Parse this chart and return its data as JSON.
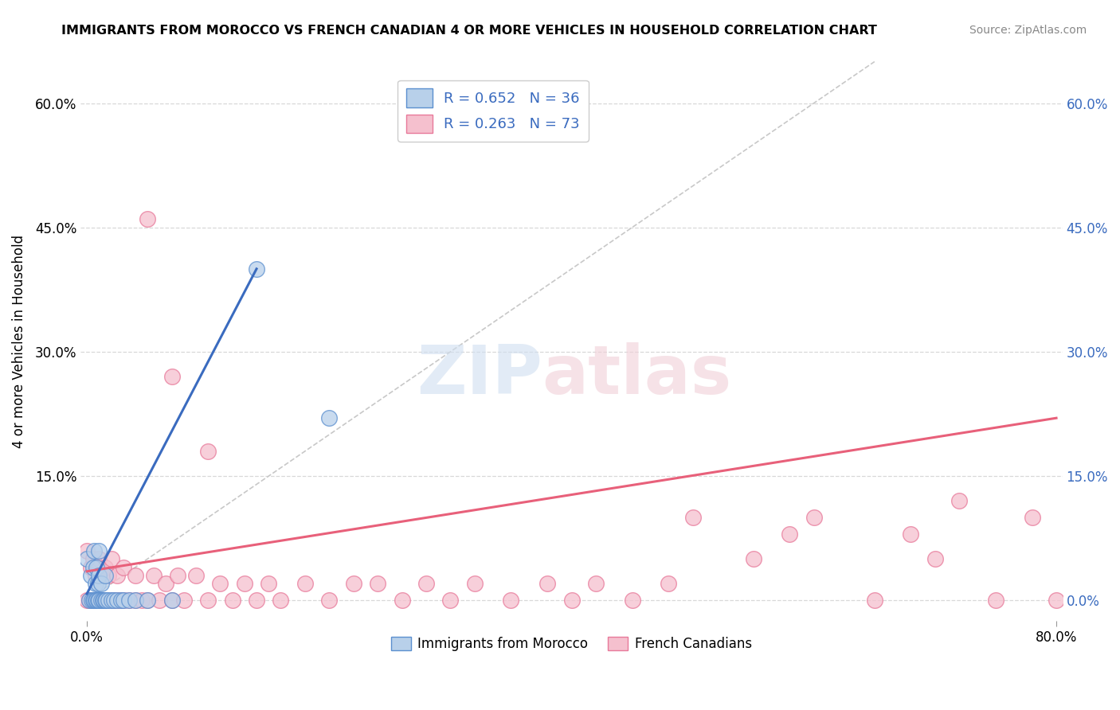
{
  "title": "IMMIGRANTS FROM MOROCCO VS FRENCH CANADIAN 4 OR MORE VEHICLES IN HOUSEHOLD CORRELATION CHART",
  "source": "Source: ZipAtlas.com",
  "ylabel": "4 or more Vehicles in Household",
  "xlim": [
    -0.005,
    0.805
  ],
  "ylim": [
    -0.025,
    0.65
  ],
  "xtick_positions": [
    0.0,
    0.8
  ],
  "xtick_labels": [
    "0.0%",
    "80.0%"
  ],
  "ytick_positions": [
    0.0,
    0.15,
    0.3,
    0.45,
    0.6
  ],
  "ytick_labels": [
    "",
    "15.0%",
    "30.0%",
    "45.0%",
    "60.0%"
  ],
  "right_ytick_positions": [
    0.0,
    0.15,
    0.3,
    0.45,
    0.6
  ],
  "right_ytick_labels": [
    "0.0%",
    "15.0%",
    "30.0%",
    "45.0%",
    "60.0%"
  ],
  "watermark_zip": "ZIP",
  "watermark_atlas": "atlas",
  "legend_line1": "R = 0.652   N = 36",
  "legend_line2": "R = 0.263   N = 73",
  "legend_label_blue": "Immigrants from Morocco",
  "legend_label_pink": "French Canadians",
  "blue_face": "#b8d0ea",
  "blue_edge": "#5b8fcf",
  "pink_face": "#f5c0ce",
  "pink_edge": "#e8799a",
  "blue_line_color": "#3a6bbf",
  "pink_line_color": "#e8607a",
  "diag_color": "#c8c8c8",
  "grid_color": "#d8d8d8",
  "blue_scatter_x": [
    0.0,
    0.002,
    0.003,
    0.004,
    0.005,
    0.005,
    0.006,
    0.006,
    0.007,
    0.007,
    0.008,
    0.008,
    0.009,
    0.009,
    0.01,
    0.01,
    0.01,
    0.012,
    0.012,
    0.013,
    0.014,
    0.015,
    0.015,
    0.016,
    0.018,
    0.02,
    0.022,
    0.025,
    0.028,
    0.03,
    0.035,
    0.04,
    0.05,
    0.07,
    0.14,
    0.2
  ],
  "blue_scatter_y": [
    0.05,
    0.0,
    0.03,
    0.0,
    0.0,
    0.04,
    0.0,
    0.06,
    0.0,
    0.02,
    0.0,
    0.04,
    0.0,
    0.02,
    0.0,
    0.03,
    0.06,
    0.0,
    0.02,
    0.0,
    0.0,
    0.0,
    0.03,
    0.0,
    0.0,
    0.0,
    0.0,
    0.0,
    0.0,
    0.0,
    0.0,
    0.0,
    0.0,
    0.0,
    0.4,
    0.22
  ],
  "pink_scatter_x": [
    0.0,
    0.0,
    0.002,
    0.003,
    0.005,
    0.005,
    0.006,
    0.007,
    0.008,
    0.009,
    0.01,
    0.01,
    0.012,
    0.013,
    0.015,
    0.015,
    0.016,
    0.018,
    0.02,
    0.02,
    0.022,
    0.025,
    0.025,
    0.028,
    0.03,
    0.03,
    0.035,
    0.04,
    0.04,
    0.045,
    0.05,
    0.055,
    0.06,
    0.065,
    0.07,
    0.075,
    0.08,
    0.09,
    0.1,
    0.11,
    0.12,
    0.13,
    0.14,
    0.15,
    0.16,
    0.18,
    0.2,
    0.22,
    0.24,
    0.26,
    0.28,
    0.3,
    0.32,
    0.35,
    0.38,
    0.4,
    0.42,
    0.45,
    0.48,
    0.5,
    0.55,
    0.58,
    0.6,
    0.65,
    0.68,
    0.7,
    0.72,
    0.75,
    0.78,
    0.8,
    0.05,
    0.07,
    0.1
  ],
  "pink_scatter_y": [
    0.0,
    0.06,
    0.0,
    0.04,
    0.0,
    0.05,
    0.0,
    0.03,
    0.0,
    0.04,
    0.0,
    0.05,
    0.0,
    0.03,
    0.0,
    0.04,
    0.0,
    0.03,
    0.0,
    0.05,
    0.0,
    0.0,
    0.03,
    0.0,
    0.0,
    0.04,
    0.0,
    0.0,
    0.03,
    0.0,
    0.0,
    0.03,
    0.0,
    0.02,
    0.0,
    0.03,
    0.0,
    0.03,
    0.0,
    0.02,
    0.0,
    0.02,
    0.0,
    0.02,
    0.0,
    0.02,
    0.0,
    0.02,
    0.02,
    0.0,
    0.02,
    0.0,
    0.02,
    0.0,
    0.02,
    0.0,
    0.02,
    0.0,
    0.02,
    0.1,
    0.05,
    0.08,
    0.1,
    0.0,
    0.08,
    0.05,
    0.12,
    0.0,
    0.1,
    0.0,
    0.46,
    0.27,
    0.18
  ],
  "blue_line_x": [
    0.0,
    0.14
  ],
  "blue_line_y": [
    0.008,
    0.4
  ],
  "pink_line_x": [
    0.0,
    0.8
  ],
  "pink_line_y": [
    0.035,
    0.22
  ],
  "diag_line_x": [
    0.0,
    0.65
  ],
  "diag_line_y": [
    0.0,
    0.65
  ]
}
